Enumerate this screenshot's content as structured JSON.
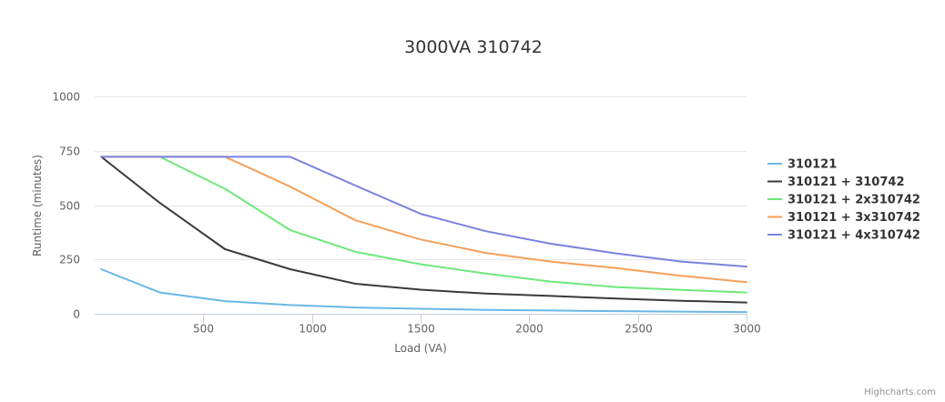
{
  "chart_data": {
    "type": "line",
    "title": "3000VA 310742",
    "xlabel": "Load (VA)",
    "ylabel": "Runtime (minutes)",
    "xlim": [
      0,
      3000
    ],
    "ylim": [
      0,
      1000
    ],
    "x_ticks": [
      "500",
      "1000",
      "1500",
      "2000",
      "2500",
      "3000"
    ],
    "y_ticks": [
      "0",
      "250",
      "500",
      "750",
      "1000"
    ],
    "grid": "horizontal",
    "legend_position": "right",
    "credits": "Highcharts.com",
    "series": [
      {
        "name": "310121",
        "color": "#6ab7e6",
        "points": [
          [
            30,
            205
          ],
          [
            300,
            98
          ],
          [
            600,
            58
          ],
          [
            900,
            40
          ],
          [
            1200,
            29
          ],
          [
            1500,
            23
          ],
          [
            1800,
            18
          ],
          [
            2100,
            15
          ],
          [
            2400,
            12
          ],
          [
            2700,
            10
          ],
          [
            3000,
            8
          ]
        ]
      },
      {
        "name": "310121 + 310742",
        "color": "#3a3a3e",
        "points": [
          [
            30,
            722
          ],
          [
            300,
            510
          ],
          [
            600,
            297
          ],
          [
            900,
            205
          ],
          [
            1200,
            138
          ],
          [
            1500,
            111
          ],
          [
            1800,
            93
          ],
          [
            2100,
            82
          ],
          [
            2400,
            70
          ],
          [
            2700,
            60
          ],
          [
            3000,
            52
          ]
        ]
      },
      {
        "name": "310121 + 2x310742",
        "color": "#6ee87a",
        "points": [
          [
            30,
            722
          ],
          [
            300,
            722
          ],
          [
            600,
            575
          ],
          [
            900,
            385
          ],
          [
            1200,
            285
          ],
          [
            1500,
            228
          ],
          [
            1800,
            185
          ],
          [
            2100,
            148
          ],
          [
            2400,
            123
          ],
          [
            2700,
            110
          ],
          [
            3000,
            98
          ]
        ]
      },
      {
        "name": "310121 + 3x310742",
        "color": "#f5a05a",
        "points": [
          [
            30,
            722
          ],
          [
            600,
            722
          ],
          [
            900,
            585
          ],
          [
            1200,
            430
          ],
          [
            1500,
            342
          ],
          [
            1800,
            280
          ],
          [
            2100,
            240
          ],
          [
            2400,
            210
          ],
          [
            2700,
            175
          ],
          [
            3000,
            145
          ]
        ]
      },
      {
        "name": "310121 + 4x310742",
        "color": "#7a82e0",
        "points": [
          [
            30,
            722
          ],
          [
            900,
            722
          ],
          [
            1200,
            590
          ],
          [
            1500,
            460
          ],
          [
            1800,
            380
          ],
          [
            2100,
            322
          ],
          [
            2400,
            278
          ],
          [
            2700,
            240
          ],
          [
            3000,
            217
          ]
        ]
      }
    ]
  }
}
